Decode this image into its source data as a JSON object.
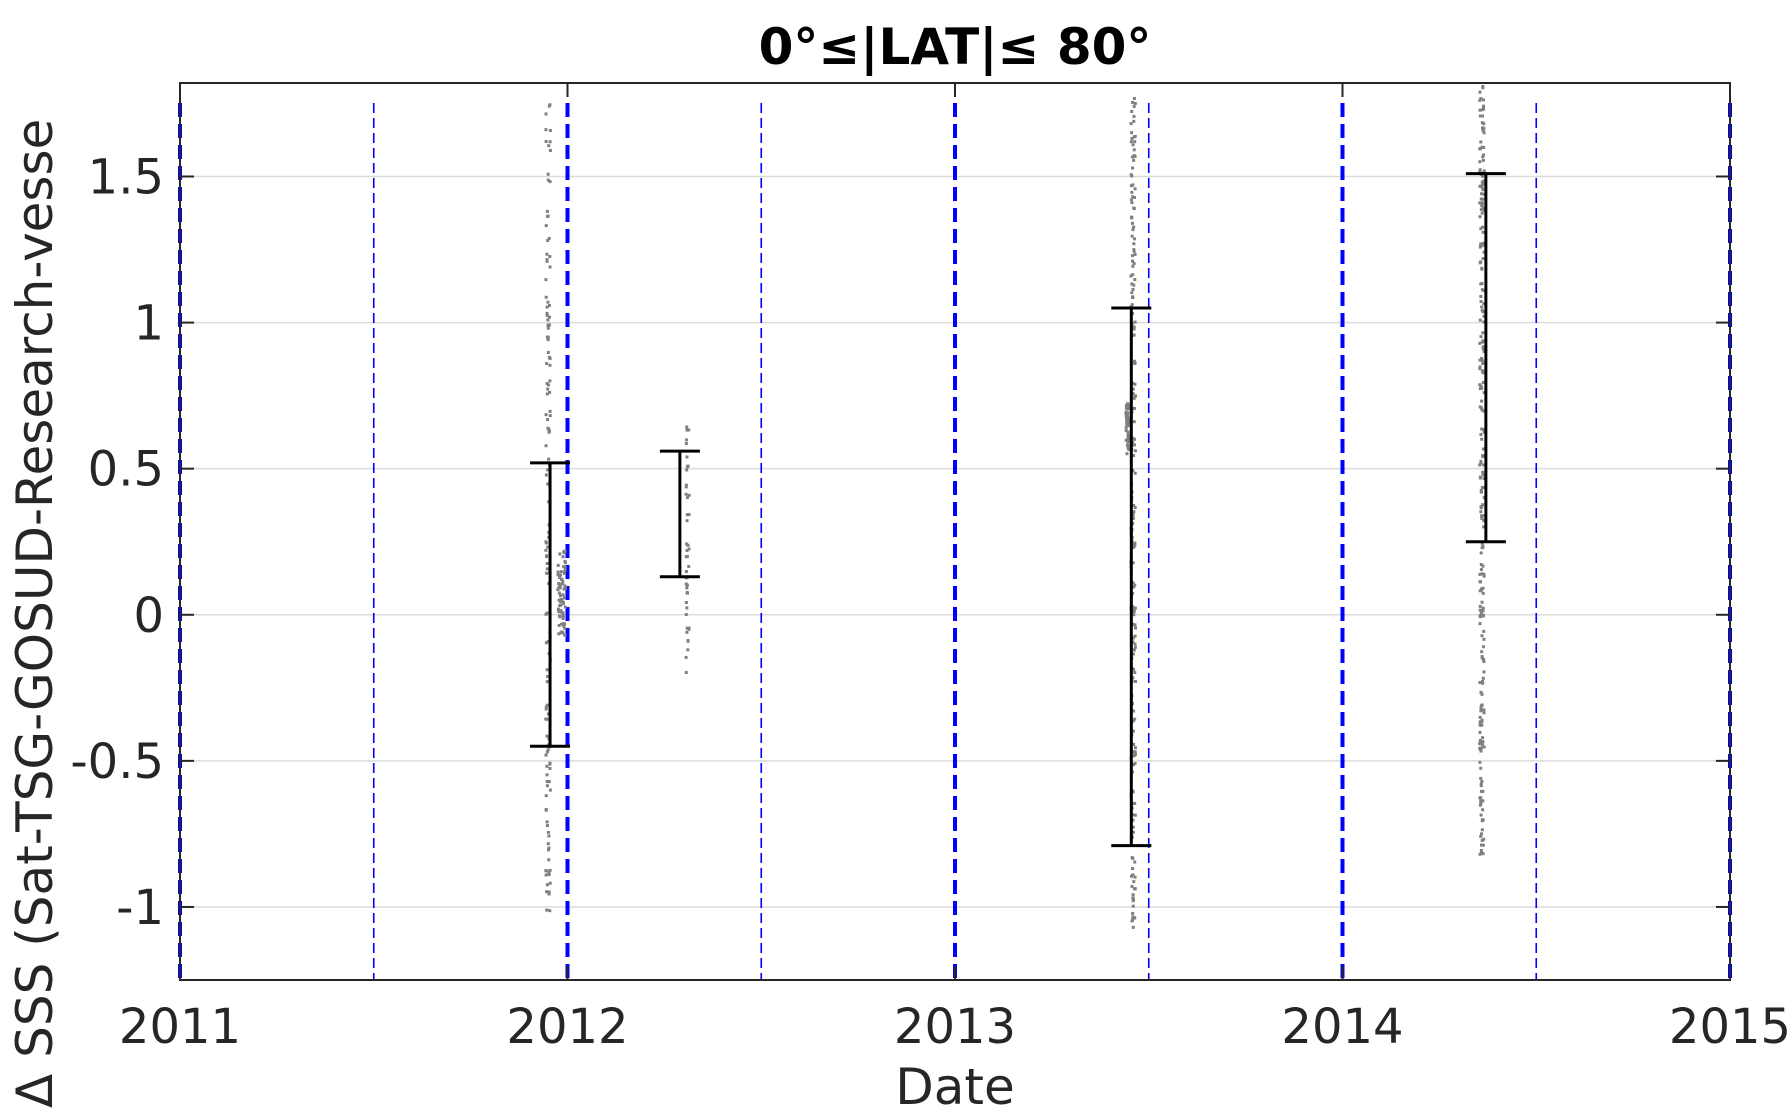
{
  "chart_data": {
    "type": "scatter",
    "title": "0°≤|LAT|≤ 80°",
    "xlabel": "Date",
    "ylabel": "Δ SSS (Sat-TSG-GOSUD-Research-vesse",
    "x_ticks": [
      "2011",
      "2012",
      "2013",
      "2014",
      "2015"
    ],
    "y_ticks": [
      "-1",
      "-0.5",
      "0",
      "0.5",
      "1",
      "1.5"
    ],
    "xlim": [
      2011.0,
      2015.0
    ],
    "ylim": [
      -1.25,
      1.82
    ],
    "grid": true,
    "colors": {
      "scatter": "#808080",
      "errorbar": "#000000",
      "vline": "#0000ff",
      "grid": "#dcdcdc",
      "axis": "#262626"
    },
    "year_lines": [
      2011.0,
      2012.0,
      2013.0,
      2014.0,
      2015.0
    ],
    "half_year_lines": [
      2011.5,
      2012.5,
      2013.5,
      2014.5
    ],
    "errorbars": [
      {
        "x": 2011.955,
        "low": -0.45,
        "high": 0.52
      },
      {
        "x": 2012.29,
        "low": 0.13,
        "high": 0.56
      },
      {
        "x": 2013.455,
        "low": -0.79,
        "high": 1.05
      },
      {
        "x": 2014.37,
        "low": 0.25,
        "high": 1.51
      }
    ],
    "scatter_groups": [
      {
        "x": 2011.95,
        "x_spread": 0.006,
        "count": 150,
        "y_min": -1.02,
        "y_max": 1.8
      },
      {
        "x": 2011.985,
        "x_spread": 0.01,
        "count": 70,
        "y_min": -0.08,
        "y_max": 0.22
      },
      {
        "x": 2012.31,
        "x_spread": 0.004,
        "count": 45,
        "y_min": -0.24,
        "y_max": 0.67
      },
      {
        "x": 2013.445,
        "x_spread": 0.004,
        "count": 50,
        "y_min": 0.55,
        "y_max": 0.73
      },
      {
        "x": 2013.46,
        "x_spread": 0.006,
        "count": 220,
        "y_min": -1.07,
        "y_max": 1.77
      },
      {
        "x": 2014.36,
        "x_spread": 0.006,
        "count": 260,
        "y_min": -0.82,
        "y_max": 1.81
      }
    ]
  }
}
